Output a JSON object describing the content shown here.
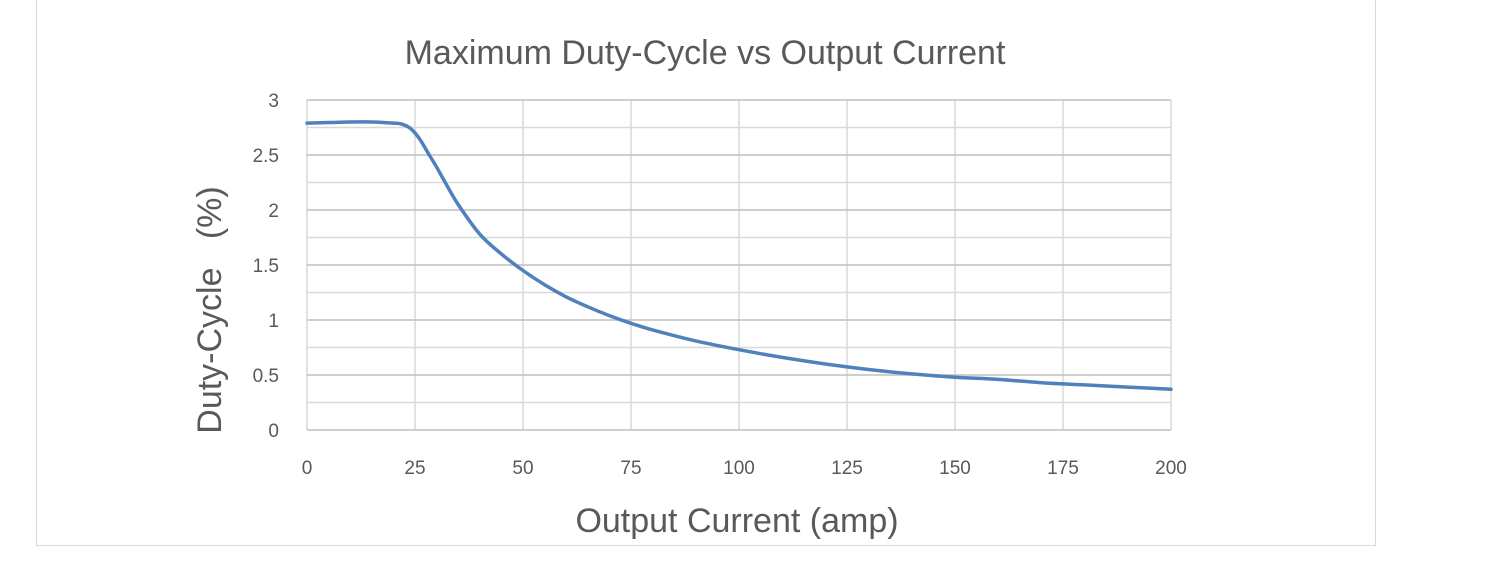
{
  "chart_data": {
    "type": "line",
    "title": "Maximum Duty-Cycle vs Output Current",
    "xlabel": "Output Current (amp)",
    "ylabel": "Duty-Cycle   (%)",
    "xlim": [
      0,
      200
    ],
    "ylim": [
      0,
      3
    ],
    "x_ticks": [
      0,
      25,
      50,
      75,
      100,
      125,
      150,
      175,
      200
    ],
    "x_tick_labels": [
      "0",
      "25",
      "50",
      "75",
      "100",
      "125",
      "150",
      "175",
      "200"
    ],
    "y_ticks": [
      0,
      0.5,
      1,
      1.5,
      2,
      2.5,
      3
    ],
    "y_tick_labels": [
      "0",
      "0.5",
      "1",
      "1.5",
      "2",
      "2.5",
      "3"
    ],
    "grid": true,
    "minor_y_gridlines": true,
    "line_color": "#4f81bd",
    "series": [
      {
        "x": [
          0,
          5,
          10,
          15,
          20,
          22,
          24,
          26,
          28,
          30,
          32,
          35,
          40,
          45,
          50,
          55,
          60,
          65,
          70,
          75,
          80,
          90,
          100,
          110,
          120,
          130,
          140,
          150,
          160,
          170,
          180,
          190,
          200
        ],
        "y": [
          2.79,
          2.795,
          2.8,
          2.8,
          2.79,
          2.78,
          2.74,
          2.65,
          2.52,
          2.39,
          2.25,
          2.05,
          1.78,
          1.6,
          1.45,
          1.32,
          1.21,
          1.12,
          1.04,
          0.97,
          0.91,
          0.81,
          0.73,
          0.66,
          0.6,
          0.55,
          0.51,
          0.48,
          0.46,
          0.43,
          0.41,
          0.39,
          0.37
        ]
      }
    ]
  }
}
